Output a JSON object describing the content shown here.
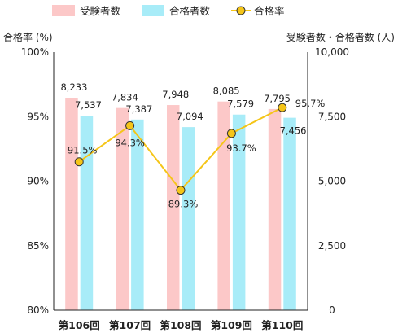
{
  "chart_data": {
    "type": "bar",
    "categories": [
      "第106回",
      "第107回",
      "第108回",
      "第109回",
      "第110回"
    ],
    "series": [
      {
        "name": "受験者数",
        "kind": "bar",
        "axis": "right",
        "color": "#fcc8c8",
        "values": [
          8233,
          7834,
          7948,
          8085,
          7795
        ],
        "labels": [
          "8,233",
          "7,834",
          "7,948",
          "8,085",
          "7,795"
        ]
      },
      {
        "name": "合格者数",
        "kind": "bar",
        "axis": "right",
        "color": "#a8ecf8",
        "values": [
          7537,
          7387,
          7094,
          7579,
          7456
        ],
        "labels": [
          "7,537",
          "7,387",
          "7,094",
          "7,579",
          "7,456"
        ]
      },
      {
        "name": "合格率",
        "kind": "line",
        "axis": "left",
        "color": "#f5c518",
        "values": [
          91.5,
          94.3,
          89.3,
          93.7,
          95.7
        ],
        "labels": [
          "91.5%",
          "94.3%",
          "89.3%",
          "93.7%",
          "95.7%"
        ]
      }
    ],
    "ylabel_left": "合格率 (%)",
    "ylabel_right": "受験者数・合格者数 (人)",
    "ylim_left": [
      80,
      100
    ],
    "ylim_right": [
      0,
      10000
    ],
    "yticks_left": [
      "80%",
      "85%",
      "90%",
      "95%",
      "100%"
    ],
    "yticks_right": [
      "0",
      "2,500",
      "5,000",
      "7,500",
      "10,000"
    ],
    "legend_position": "top",
    "grid": false
  }
}
